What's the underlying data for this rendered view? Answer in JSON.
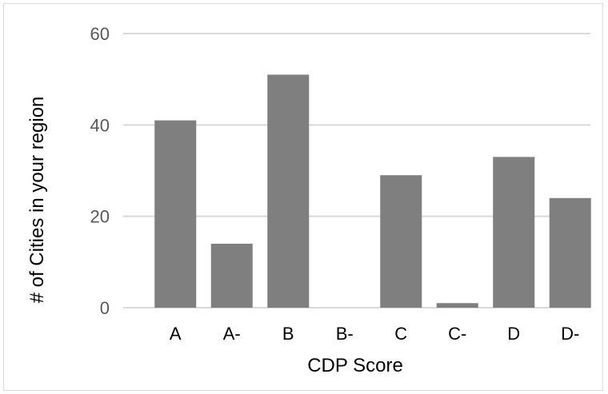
{
  "chart_data": {
    "type": "bar",
    "categories": [
      "A",
      "A-",
      "B",
      "B-",
      "C",
      "C-",
      "D",
      "D-"
    ],
    "values": [
      41,
      14,
      51,
      0,
      29,
      1,
      33,
      24
    ],
    "title": "",
    "xlabel": "CDP Score",
    "ylabel": "# of Cities in your region",
    "ylim": [
      0,
      60
    ],
    "yticks": [
      0,
      20,
      40,
      60
    ],
    "grid": true,
    "legend": "none",
    "bar_color": "#7f7f7f",
    "grid_color": "#d9d9d9"
  }
}
